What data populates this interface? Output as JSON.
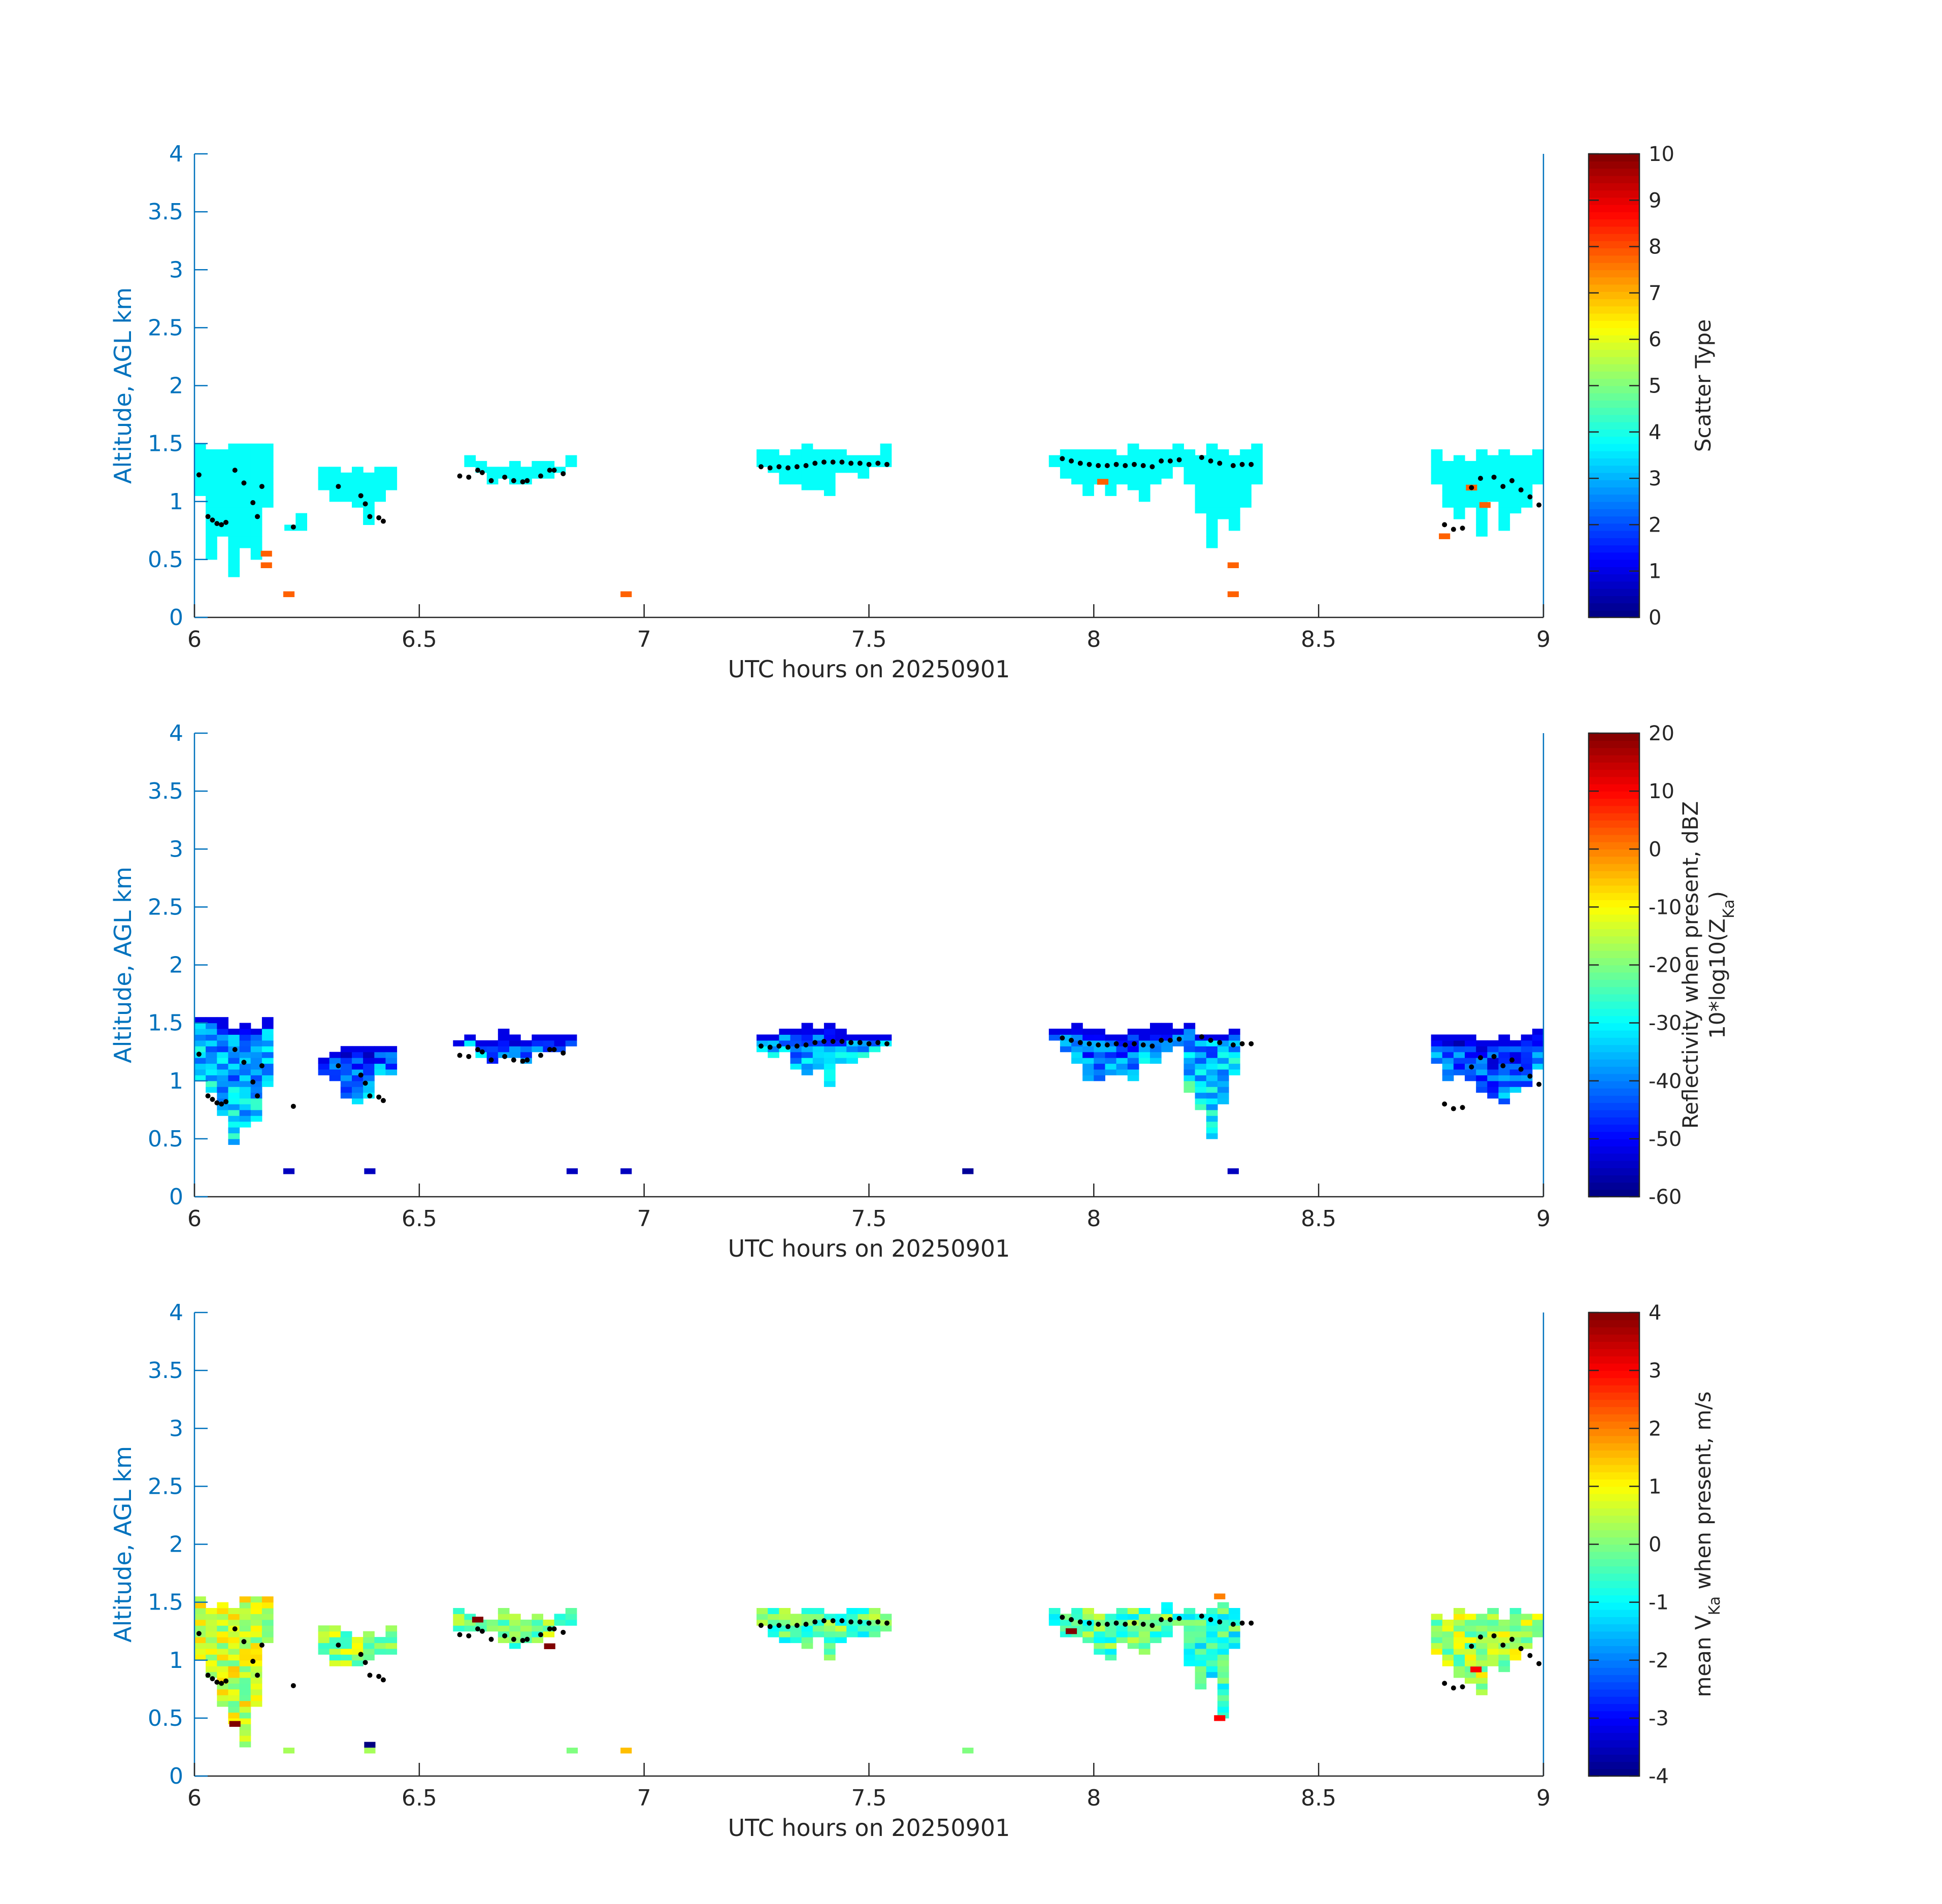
{
  "chart_data": [
    {
      "type": "heatmap",
      "xlabel": "UTC hours on 20250901",
      "ylabel": "Altitude, AGL km",
      "xlim": [
        6,
        9
      ],
      "ylim": [
        0,
        4
      ],
      "x_ticks": [
        "6",
        "6.5",
        "7",
        "7.5",
        "8",
        "8.5",
        "9"
      ],
      "y_ticks": [
        "0",
        "0.5",
        "1",
        "1.5",
        "2",
        "2.5",
        "3",
        "3.5",
        "4"
      ],
      "colorbar": {
        "label": "Scatter Type",
        "label_line2": "",
        "label_sub": "",
        "label_tail": "",
        "range": [
          0,
          10
        ],
        "ticks": [
          "0",
          "1",
          "2",
          "3",
          "4",
          "5",
          "6",
          "7",
          "8",
          "9",
          "10"
        ],
        "colormap": "jet"
      },
      "cloud_regions": [
        {
          "x0": 6.0,
          "x1": 6.17,
          "ymin": 0.2,
          "ymax": 1.5,
          "value": 3.8
        },
        {
          "x0": 6.22,
          "x1": 6.24,
          "ymin": 0.72,
          "ymax": 0.88,
          "value": 3.8
        },
        {
          "x0": 6.3,
          "x1": 6.44,
          "ymin": 0.8,
          "ymax": 1.3,
          "value": 3.8
        },
        {
          "x0": 6.58,
          "x1": 6.84,
          "ymin": 1.15,
          "ymax": 1.4,
          "value": 3.8
        },
        {
          "x0": 7.25,
          "x1": 7.55,
          "ymin": 1.05,
          "ymax": 1.48,
          "value": 3.8
        },
        {
          "x0": 7.92,
          "x1": 8.2,
          "ymin": 0.95,
          "ymax": 1.48,
          "value": 3.8
        },
        {
          "x0": 8.22,
          "x1": 8.37,
          "ymin": 0.45,
          "ymax": 1.48,
          "value": 3.8
        },
        {
          "x0": 8.77,
          "x1": 9.0,
          "ymin": 0.68,
          "ymax": 1.43,
          "value": 3.8
        }
      ],
      "special_cells": [
        {
          "x": 6.16,
          "y": 0.45,
          "value": 7.8
        },
        {
          "x": 6.16,
          "y": 0.55,
          "value": 7.8
        },
        {
          "x": 6.21,
          "y": 0.2,
          "value": 7.8
        },
        {
          "x": 6.96,
          "y": 0.2,
          "value": 7.8
        },
        {
          "x": 8.02,
          "y": 1.17,
          "value": 7.8
        },
        {
          "x": 8.31,
          "y": 0.45,
          "value": 7.8
        },
        {
          "x": 8.31,
          "y": 0.2,
          "value": 7.8
        },
        {
          "x": 8.78,
          "y": 0.7,
          "value": 7.8
        },
        {
          "x": 8.84,
          "y": 1.12,
          "value": 7.8
        },
        {
          "x": 8.87,
          "y": 0.97,
          "value": 7.8
        }
      ]
    },
    {
      "type": "heatmap",
      "xlabel": "UTC hours on 20250901",
      "ylabel": "Altitude, AGL km",
      "xlim": [
        6,
        9
      ],
      "ylim": [
        0,
        4
      ],
      "x_ticks": [
        "6",
        "6.5",
        "7",
        "7.5",
        "8",
        "8.5",
        "9"
      ],
      "y_ticks": [
        "0",
        "0.5",
        "1",
        "1.5",
        "2",
        "2.5",
        "3",
        "3.5",
        "4"
      ],
      "colorbar": {
        "label": "Reflectivity when present, dBZ",
        "label_line2": "10*log10(Z",
        "label_sub": "Ka",
        "label_tail": ")",
        "range": [
          -60,
          20
        ],
        "ticks": [
          "-60",
          "-50",
          "-40",
          "-30",
          "-20",
          "-10",
          "0",
          "10",
          "20"
        ],
        "colormap": "jet"
      },
      "cloud_regions": [
        {
          "x0": 6.0,
          "x1": 6.17,
          "ymin": 0.2,
          "ymax": 1.55,
          "value": -32
        },
        {
          "x0": 6.3,
          "x1": 6.44,
          "ymin": 0.8,
          "ymax": 1.3,
          "value": -40
        },
        {
          "x0": 6.59,
          "x1": 6.84,
          "ymin": 1.12,
          "ymax": 1.43,
          "value": -40
        },
        {
          "x0": 7.25,
          "x1": 7.54,
          "ymin": 0.98,
          "ymax": 1.48,
          "value": -36
        },
        {
          "x0": 7.92,
          "x1": 8.2,
          "ymin": 0.95,
          "ymax": 1.48,
          "value": -38
        },
        {
          "x0": 8.22,
          "x1": 8.32,
          "ymin": 0.38,
          "ymax": 1.48,
          "value": -30
        },
        {
          "x0": 8.77,
          "x1": 9.0,
          "ymin": 0.67,
          "ymax": 1.43,
          "value": -40
        }
      ],
      "special_cells": [
        {
          "x": 6.21,
          "y": 0.22,
          "value": -55
        },
        {
          "x": 6.39,
          "y": 0.22,
          "value": -55
        },
        {
          "x": 6.84,
          "y": 0.22,
          "value": -55
        },
        {
          "x": 6.96,
          "y": 0.22,
          "value": -55
        },
        {
          "x": 7.72,
          "y": 0.22,
          "value": -58
        },
        {
          "x": 8.31,
          "y": 0.22,
          "value": -55
        }
      ]
    },
    {
      "type": "heatmap",
      "xlabel": "UTC hours on 20250901",
      "ylabel": "Altitude, AGL km",
      "xlim": [
        6,
        9
      ],
      "ylim": [
        0,
        4
      ],
      "x_ticks": [
        "6",
        "6.5",
        "7",
        "7.5",
        "8",
        "8.5",
        "9"
      ],
      "y_ticks": [
        "0",
        "0.5",
        "1",
        "1.5",
        "2",
        "2.5",
        "3",
        "3.5",
        "4"
      ],
      "colorbar": {
        "label": "mean V",
        "label_line2": "",
        "label_sub": "Ka",
        "label_tail": " when present, m/s",
        "range": [
          -4,
          4
        ],
        "ticks": [
          "-4",
          "-3",
          "-2",
          "-1",
          "0",
          "1",
          "2",
          "3",
          "4"
        ],
        "colormap": "jet"
      },
      "cloud_regions": [
        {
          "x0": 6.0,
          "x1": 6.17,
          "ymin": 0.2,
          "ymax": 1.55,
          "value": 0.6
        },
        {
          "x0": 6.3,
          "x1": 6.44,
          "ymin": 0.8,
          "ymax": 1.3,
          "value": 0.2
        },
        {
          "x0": 6.59,
          "x1": 6.84,
          "ymin": 1.12,
          "ymax": 1.43,
          "value": 0.0
        },
        {
          "x0": 7.25,
          "x1": 7.54,
          "ymin": 0.98,
          "ymax": 1.48,
          "value": -0.3
        },
        {
          "x0": 7.92,
          "x1": 8.2,
          "ymin": 0.95,
          "ymax": 1.48,
          "value": -0.3
        },
        {
          "x0": 8.22,
          "x1": 8.32,
          "ymin": 0.38,
          "ymax": 1.48,
          "value": -0.6
        },
        {
          "x0": 8.77,
          "x1": 9.0,
          "ymin": 0.67,
          "ymax": 1.43,
          "value": 0.3
        }
      ],
      "special_cells": [
        {
          "x": 6.21,
          "y": 0.22,
          "value": 0.3
        },
        {
          "x": 6.39,
          "y": 0.22,
          "value": 0.3
        },
        {
          "x": 6.39,
          "y": 0.27,
          "value": -4
        },
        {
          "x": 6.84,
          "y": 0.22,
          "value": 0.0
        },
        {
          "x": 6.96,
          "y": 0.22,
          "value": 1.5
        },
        {
          "x": 7.72,
          "y": 0.22,
          "value": 0.0
        },
        {
          "x": 6.63,
          "y": 1.35,
          "value": 4
        },
        {
          "x": 6.79,
          "y": 1.12,
          "value": 4
        },
        {
          "x": 6.09,
          "y": 0.45,
          "value": 4
        },
        {
          "x": 7.95,
          "y": 1.25,
          "value": 4
        },
        {
          "x": 8.28,
          "y": 1.55,
          "value": 2
        },
        {
          "x": 8.28,
          "y": 0.5,
          "value": 3
        },
        {
          "x": 8.85,
          "y": 0.92,
          "value": 3
        }
      ],
      "dots_source": "shared"
    }
  ],
  "cloud_base_dots": [
    [
      6.01,
      1.23
    ],
    [
      6.03,
      0.87
    ],
    [
      6.04,
      0.84
    ],
    [
      6.05,
      0.81
    ],
    [
      6.06,
      0.8
    ],
    [
      6.07,
      0.82
    ],
    [
      6.09,
      1.27
    ],
    [
      6.11,
      1.16
    ],
    [
      6.13,
      0.99
    ],
    [
      6.14,
      0.87
    ],
    [
      6.15,
      1.13
    ],
    [
      6.22,
      0.78
    ],
    [
      6.32,
      1.13
    ],
    [
      6.37,
      1.05
    ],
    [
      6.38,
      0.98
    ],
    [
      6.39,
      0.87
    ],
    [
      6.41,
      0.86
    ],
    [
      6.42,
      0.83
    ],
    [
      6.59,
      1.22
    ],
    [
      6.61,
      1.21
    ],
    [
      6.63,
      1.27
    ],
    [
      6.64,
      1.25
    ],
    [
      6.66,
      1.18
    ],
    [
      6.69,
      1.21
    ],
    [
      6.71,
      1.18
    ],
    [
      6.73,
      1.17
    ],
    [
      6.74,
      1.18
    ],
    [
      6.77,
      1.22
    ],
    [
      6.79,
      1.27
    ],
    [
      6.8,
      1.27
    ],
    [
      6.82,
      1.24
    ],
    [
      7.26,
      1.3
    ],
    [
      7.28,
      1.29
    ],
    [
      7.3,
      1.3
    ],
    [
      7.32,
      1.29
    ],
    [
      7.34,
      1.3
    ],
    [
      7.36,
      1.31
    ],
    [
      7.38,
      1.33
    ],
    [
      7.4,
      1.34
    ],
    [
      7.42,
      1.34
    ],
    [
      7.44,
      1.34
    ],
    [
      7.46,
      1.33
    ],
    [
      7.48,
      1.33
    ],
    [
      7.5,
      1.32
    ],
    [
      7.52,
      1.33
    ],
    [
      7.54,
      1.32
    ],
    [
      7.93,
      1.37
    ],
    [
      7.95,
      1.35
    ],
    [
      7.97,
      1.33
    ],
    [
      7.99,
      1.32
    ],
    [
      8.01,
      1.31
    ],
    [
      8.03,
      1.31
    ],
    [
      8.05,
      1.32
    ],
    [
      8.07,
      1.31
    ],
    [
      8.09,
      1.32
    ],
    [
      8.11,
      1.31
    ],
    [
      8.13,
      1.3
    ],
    [
      8.15,
      1.35
    ],
    [
      8.17,
      1.35
    ],
    [
      8.19,
      1.36
    ],
    [
      8.24,
      1.38
    ],
    [
      8.26,
      1.35
    ],
    [
      8.28,
      1.33
    ],
    [
      8.31,
      1.31
    ],
    [
      8.33,
      1.32
    ],
    [
      8.35,
      1.32
    ],
    [
      8.78,
      0.8
    ],
    [
      8.8,
      0.76
    ],
    [
      8.82,
      0.77
    ],
    [
      8.84,
      1.12
    ],
    [
      8.86,
      1.2
    ],
    [
      8.89,
      1.21
    ],
    [
      8.91,
      1.13
    ],
    [
      8.93,
      1.18
    ],
    [
      8.95,
      1.1
    ],
    [
      8.97,
      1.04
    ],
    [
      8.99,
      0.97
    ]
  ]
}
